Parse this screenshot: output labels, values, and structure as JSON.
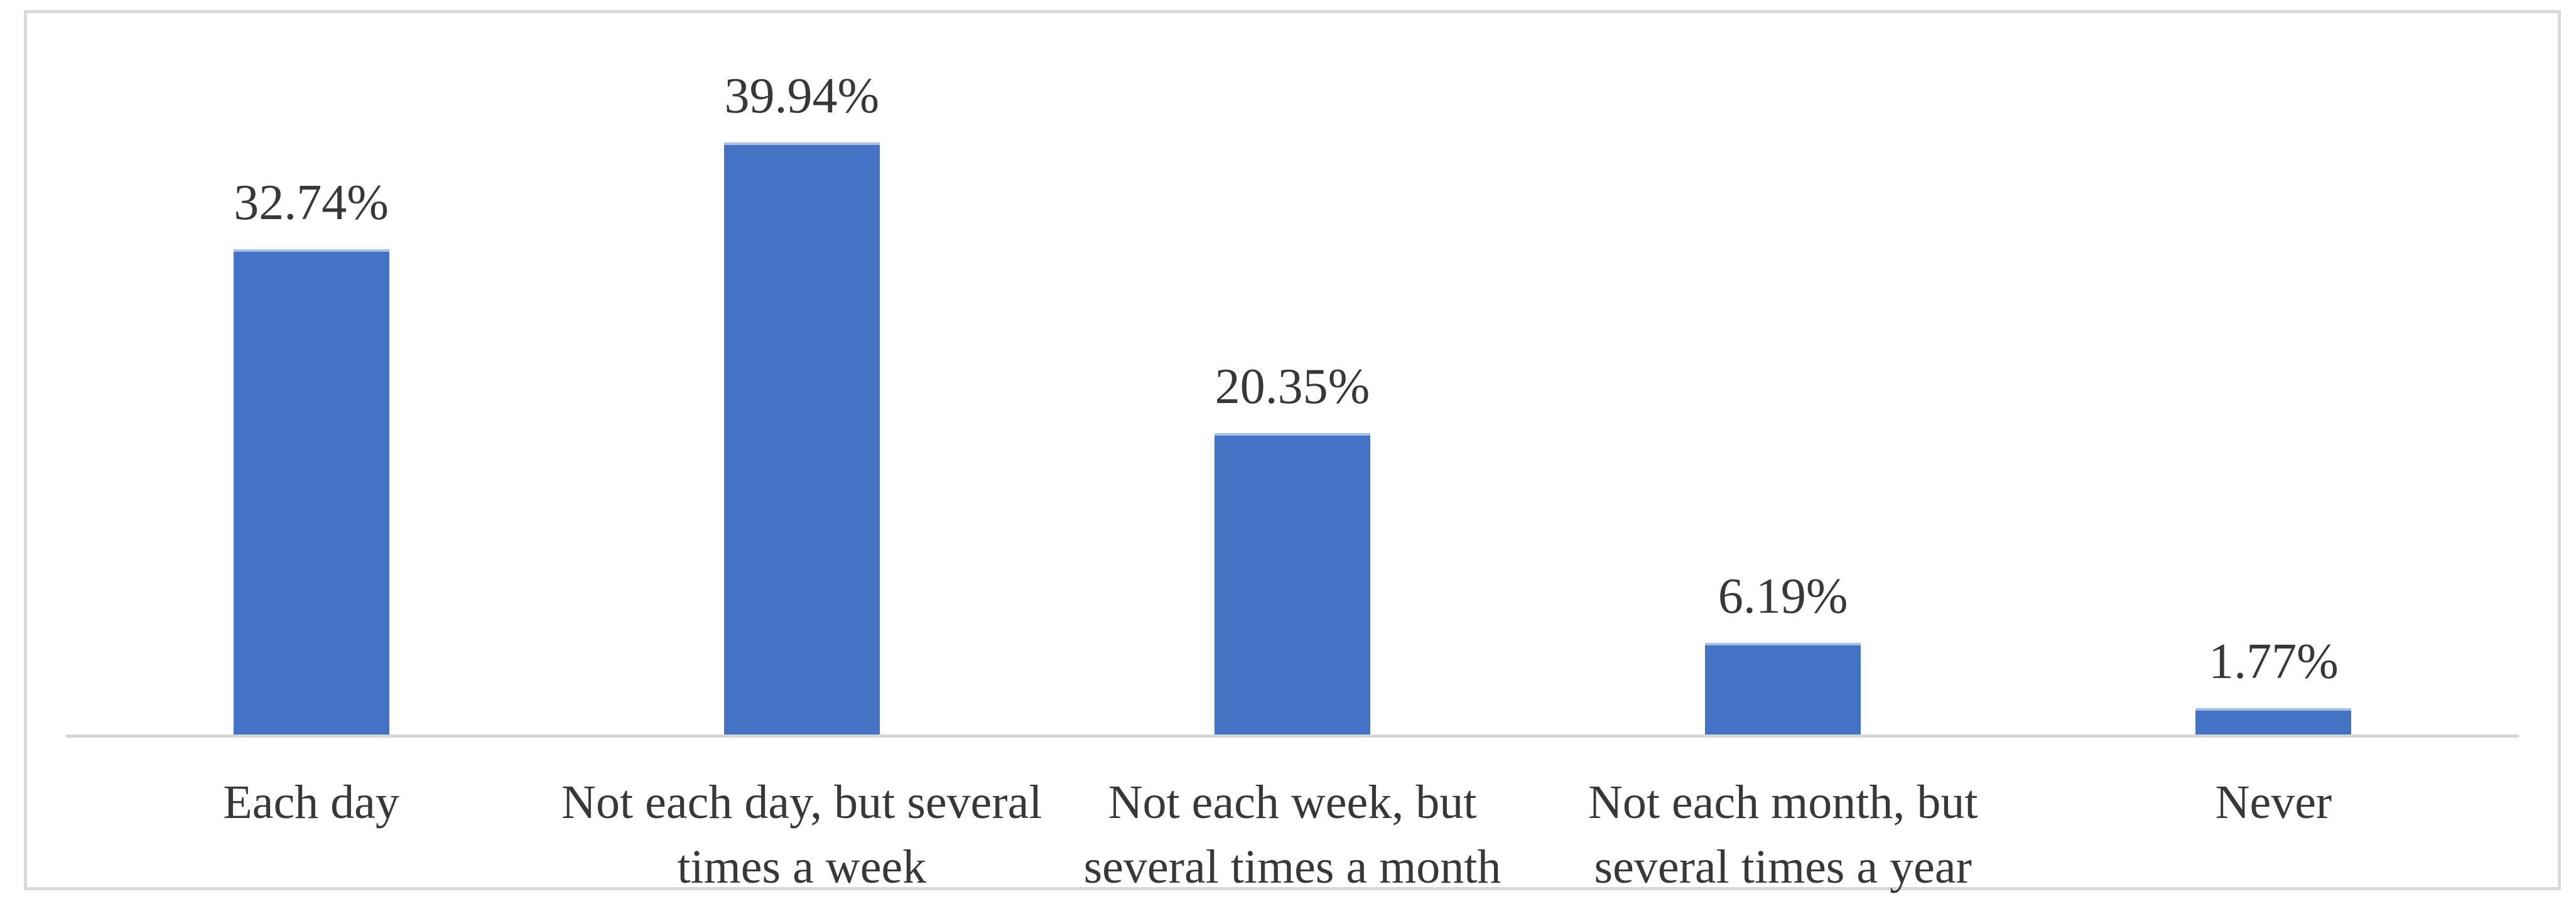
{
  "chart_data": {
    "type": "bar",
    "title": "",
    "xlabel": "",
    "ylabel": "",
    "categories": [
      "Each day",
      "Not each day, but several\ntimes a week",
      "Not each week, but\nseveral times a month",
      "Not each month, but\nseveral times a year",
      "Never"
    ],
    "values": [
      32.74,
      39.94,
      20.35,
      6.19,
      1.77
    ],
    "data_labels": [
      "32.74%",
      "39.94%",
      "20.35%",
      "6.19%",
      "1.77%"
    ],
    "series_name": "",
    "grid": false,
    "legend": false,
    "y_axis_visible": false,
    "x_axis_line_visible": true,
    "colors": {
      "bar_fill": "#4472C4",
      "bar_top_edge": "#A8C0E8",
      "axis_line": "#D6D6D6",
      "frame_border": "#D9D9D9",
      "text": "#383838",
      "background": "#FFFFFF"
    }
  }
}
